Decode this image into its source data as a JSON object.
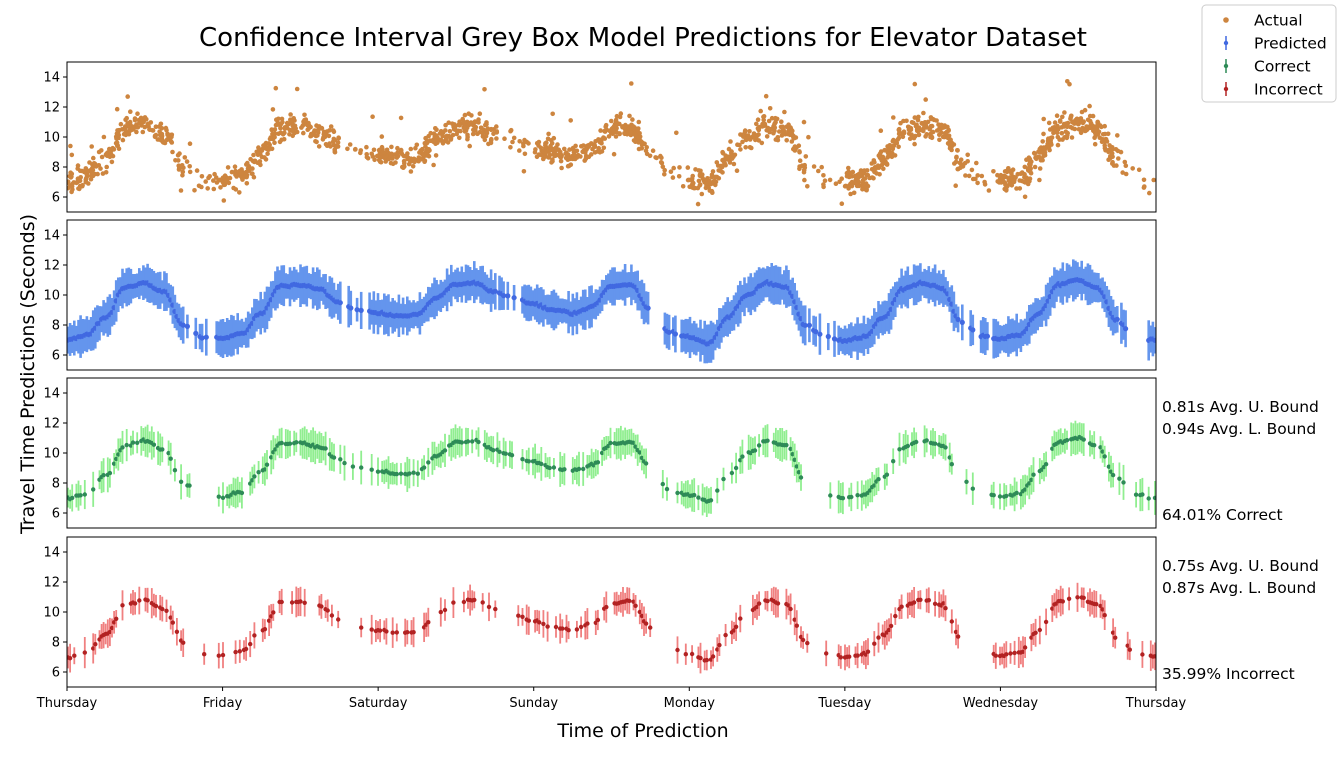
{
  "chart_data": {
    "type": "scatter",
    "title": "Confidence Interval Grey Box Model Predictions for Elevator Dataset",
    "xlabel": "Time of Prediction",
    "ylabel": "Travel Time Predictions (Seconds)",
    "ylim": [
      5,
      15
    ],
    "yticks": [
      "6",
      "8",
      "10",
      "12",
      "14"
    ],
    "xtick_labels": [
      "Thursday",
      "Friday",
      "Saturday",
      "Sunday",
      "Monday",
      "Tuesday",
      "Wednesday",
      "Thursday"
    ],
    "legend": {
      "position": "top-right",
      "entries": [
        "Actual",
        "Predicted",
        "Correct",
        "Incorrect"
      ]
    },
    "colors": {
      "actual": "#cd853f",
      "predicted_band": "#6495ed",
      "predicted_line": "#4169e1",
      "correct_band": "#90ee90",
      "correct_line": "#2e8b57",
      "incorrect_band": "#f08080",
      "incorrect_line": "#b22222"
    },
    "daily_mean_profile": {
      "note_hours": [
        0,
        3,
        6,
        9,
        12,
        15,
        18,
        21,
        24
      ],
      "values_by_day": {
        "Thursday": [
          7.0,
          7.3,
          8.5,
          10.5,
          10.8,
          10.2,
          8.0,
          7.2,
          7.1
        ],
        "Friday": [
          7.1,
          7.4,
          8.8,
          10.6,
          10.7,
          10.4,
          9.5,
          9.0,
          8.8
        ],
        "Saturday": [
          8.8,
          8.6,
          8.7,
          9.8,
          10.7,
          10.8,
          10.2,
          9.8,
          9.4
        ],
        "Sunday": [
          9.4,
          9.0,
          8.8,
          9.2,
          10.6,
          10.7,
          9.0,
          7.5,
          7.2
        ],
        "Monday": [
          7.2,
          6.8,
          8.5,
          10.0,
          10.8,
          10.5,
          8.0,
          7.2,
          7.0
        ],
        "Tuesday": [
          7.0,
          7.2,
          8.5,
          10.4,
          10.8,
          10.5,
          8.2,
          7.3,
          7.1
        ],
        "Wednesday": [
          7.1,
          7.3,
          8.8,
          10.7,
          11.0,
          10.5,
          8.3,
          7.2,
          7.0
        ]
      }
    },
    "panels": [
      {
        "series": "Actual",
        "interval_halfwidth": null
      },
      {
        "series": "Predicted",
        "interval_halfwidth": 1.1
      },
      {
        "series": "Correct",
        "interval_halfwidth": 0.9,
        "annotations": [
          "0.81s Avg. U. Bound",
          "0.94s Avg. L. Bound",
          "64.01% Correct"
        ]
      },
      {
        "series": "Incorrect",
        "interval_halfwidth": 0.8,
        "annotations": [
          "0.75s Avg. U. Bound",
          "0.87s Avg. L. Bound",
          "35.99% Incorrect"
        ]
      }
    ]
  }
}
